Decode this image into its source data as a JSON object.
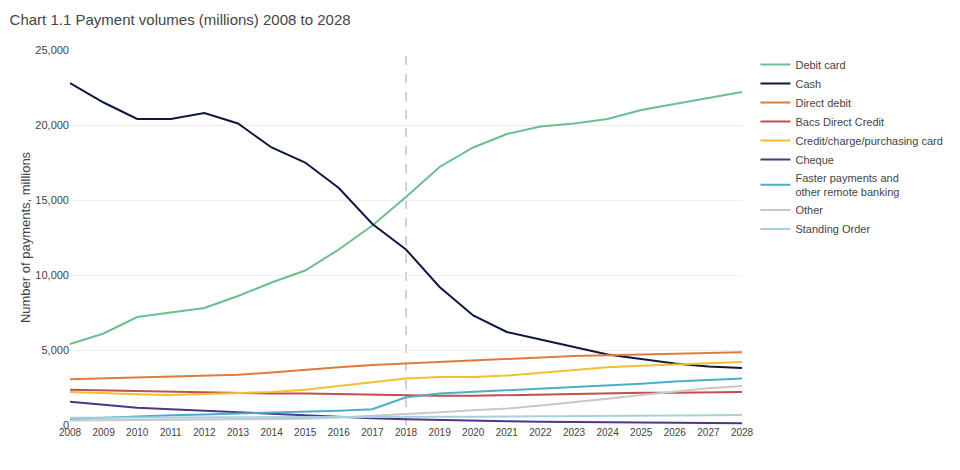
{
  "chart_data": {
    "type": "line",
    "title": "Chart 1.1 Payment volumes (millions) 2008 to 2028",
    "y_label": "Number of payments, millions",
    "x": [
      2008,
      2009,
      2010,
      2011,
      2012,
      2013,
      2014,
      2015,
      2016,
      2017,
      2018,
      2019,
      2020,
      2021,
      2022,
      2023,
      2024,
      2025,
      2026,
      2027,
      2028
    ],
    "series": [
      {
        "name": "Debit card",
        "color": "#6abf8e",
        "values": [
          5400,
          6100,
          7200,
          7500,
          7800,
          8600,
          9500,
          10300,
          11700,
          13300,
          15200,
          17200,
          18500,
          19400,
          19900,
          20100,
          20400,
          21000,
          21400,
          21800,
          22200
        ]
      },
      {
        "name": "Cash",
        "color": "#0d1840",
        "values": [
          22800,
          21500,
          20400,
          20400,
          20800,
          20100,
          18500,
          17500,
          15800,
          13400,
          11700,
          9200,
          7300,
          6200,
          5700,
          5200,
          4700,
          4400,
          4100,
          3900,
          3800
        ]
      },
      {
        "name": "Direct debit",
        "color": "#e07b39",
        "values": [
          3050,
          3100,
          3150,
          3200,
          3300,
          3350,
          3500,
          3700,
          3850,
          4000,
          4100,
          4250,
          4350,
          4400,
          4500,
          4600,
          4650,
          4700,
          4750,
          4800,
          4850
        ]
      },
      {
        "name": "Bacs Direct Credit",
        "color": "#c0504d",
        "values": [
          2350,
          2300,
          2250,
          2200,
          2200,
          2150,
          2100,
          2100,
          2050,
          2000,
          1950,
          1950,
          1950,
          2000,
          2050,
          2050,
          2100,
          2150,
          2150,
          2200,
          2200
        ]
      },
      {
        "name": "Credit/charge/purchasing card",
        "color": "#f0c030",
        "values": [
          2200,
          2100,
          2050,
          2000,
          2050,
          2100,
          2200,
          2350,
          2600,
          2850,
          3100,
          3200,
          3200,
          3300,
          3500,
          3700,
          3850,
          3950,
          4050,
          4150,
          4200
        ]
      },
      {
        "name": "Cheque",
        "color": "#4f3589",
        "values": [
          1550,
          1350,
          1150,
          1050,
          950,
          830,
          720,
          630,
          530,
          450,
          390,
          330,
          280,
          250,
          220,
          195,
          175,
          155,
          140,
          130,
          120
        ]
      },
      {
        "name": "Faster payments and\nother remote banking",
        "color": "#4baec8",
        "values": [
          400,
          500,
          600,
          650,
          700,
          750,
          800,
          870,
          950,
          1050,
          1850,
          2100,
          2200,
          2300,
          2400,
          2500,
          2600,
          2750,
          2900,
          3000,
          3100
        ]
      },
      {
        "name": "Other",
        "color": "#c8c8c8",
        "values": [
          300,
          330,
          350,
          360,
          370,
          380,
          390,
          420,
          500,
          600,
          750,
          850,
          980,
          1100,
          1300,
          1500,
          1750,
          2000,
          2250,
          2450,
          2600
        ]
      },
      {
        "name": "Standing Order",
        "color": "#a8cfe0",
        "values": [
          480,
          490,
          500,
          510,
          510,
          515,
          520,
          525,
          530,
          535,
          540,
          545,
          548,
          555,
          565,
          575,
          590,
          610,
          630,
          650,
          665
        ]
      }
    ],
    "xlim": [
      2008,
      2028
    ],
    "xticks": [
      2008,
      2009,
      2010,
      2011,
      2012,
      2013,
      2014,
      2015,
      2016,
      2017,
      2018,
      2019,
      2020,
      2021,
      2022,
      2023,
      2024,
      2025,
      2026,
      2027,
      2028
    ],
    "ylim": [
      0,
      25000
    ],
    "yticks": [
      0,
      {
        "value": 5000,
        "label": "5,000"
      },
      {
        "value": 10000,
        "label": "10,000"
      },
      {
        "value": 15000,
        "label": "15,000"
      },
      {
        "value": 20000,
        "label": "20,000"
      },
      {
        "value": 25000,
        "label": "25,000"
      }
    ],
    "grid": true,
    "legend": "upper right",
    "vline_x": 2018
  }
}
